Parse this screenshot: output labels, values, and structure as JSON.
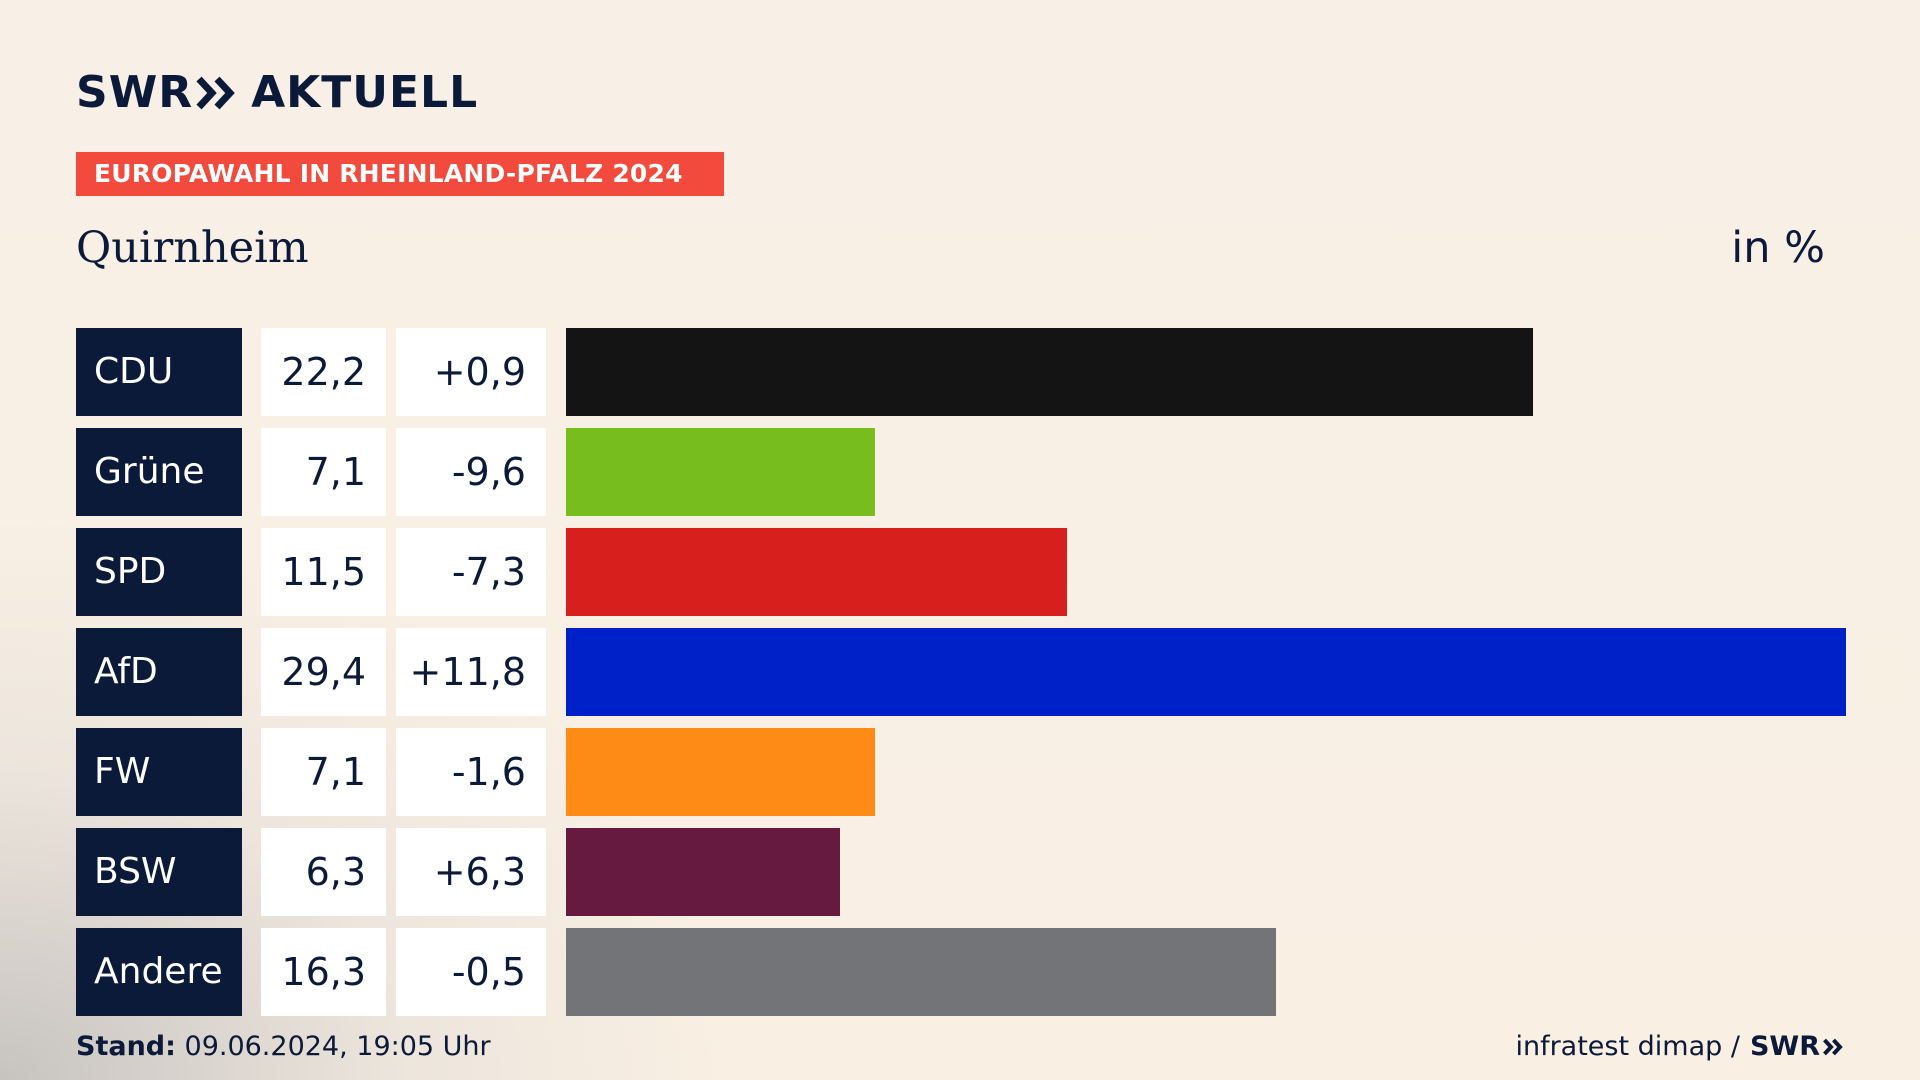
{
  "brand": {
    "swr": "SWR",
    "aktuell": "AKTUELL",
    "logo_icon": "double-chevron-icon",
    "color": "#0c1a3a"
  },
  "banner": {
    "text": "EUROPAWAHL IN RHEINLAND-PFALZ 2024",
    "color": "#f24a3c"
  },
  "title": "Quirnheim",
  "unit": "in %",
  "footer": {
    "stand_label": "Stand:",
    "stand_value": "09.06.2024, 19:05 Uhr",
    "source": "infratest dimap /",
    "source_brand": "SWR"
  },
  "chart_data": {
    "type": "bar",
    "orientation": "horizontal",
    "categories": [
      "CDU",
      "Grüne",
      "SPD",
      "AfD",
      "FW",
      "BSW",
      "Andere"
    ],
    "values": [
      22.2,
      7.1,
      11.5,
      29.4,
      7.1,
      6.3,
      16.3
    ],
    "value_labels": [
      "22,2",
      "7,1",
      "11,5",
      "29,4",
      "7,1",
      "6,3",
      "16,3"
    ],
    "diff_labels": [
      "+0,9",
      "-9,6",
      "-7,3",
      "+11,8",
      "-1,6",
      "+6,3",
      "-0,5"
    ],
    "colors": [
      "#141414",
      "#78bd1e",
      "#d71f1d",
      "#0021c8",
      "#fe8b15",
      "#661a3f",
      "#737477"
    ],
    "xlim": [
      0,
      29.4
    ]
  }
}
